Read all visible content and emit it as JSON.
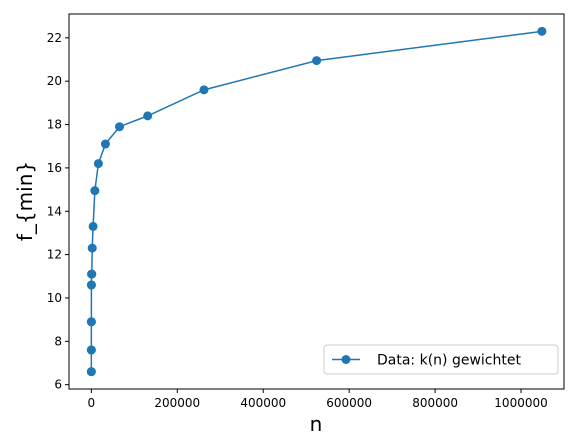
{
  "chart_data": {
    "type": "line",
    "title": "",
    "xlabel": "n",
    "ylabel": "f_{min}",
    "xlim": [
      -52000,
      1100000
    ],
    "ylim": [
      5.8,
      23.1
    ],
    "xticks": [
      0,
      200000,
      400000,
      600000,
      800000,
      1000000
    ],
    "xtick_labels": [
      "0",
      "200000",
      "400000",
      "600000",
      "800000",
      "1000000"
    ],
    "yticks": [
      6,
      8,
      10,
      12,
      14,
      16,
      18,
      20,
      22
    ],
    "ytick_labels": [
      "6",
      "8",
      "10",
      "12",
      "14",
      "16",
      "18",
      "20",
      "22"
    ],
    "grid": false,
    "legend_position": "lower-right",
    "series": [
      {
        "name": "Data: k(n) gewichtet",
        "color": "#1f77b4",
        "marker": "circle",
        "x": [
          2,
          4,
          8,
          16,
          32,
          64,
          128,
          256,
          512,
          1024,
          2048,
          4096,
          8192,
          16384,
          32768,
          65536,
          131072,
          262144,
          524288,
          1048576
        ],
        "y": [
          6.6,
          6.6,
          7.6,
          7.6,
          8.9,
          8.9,
          10.6,
          10.6,
          11.1,
          11.1,
          12.3,
          13.3,
          14.95,
          16.2,
          17.1,
          17.9,
          18.4,
          19.6,
          20.95,
          22.3
        ]
      }
    ]
  }
}
